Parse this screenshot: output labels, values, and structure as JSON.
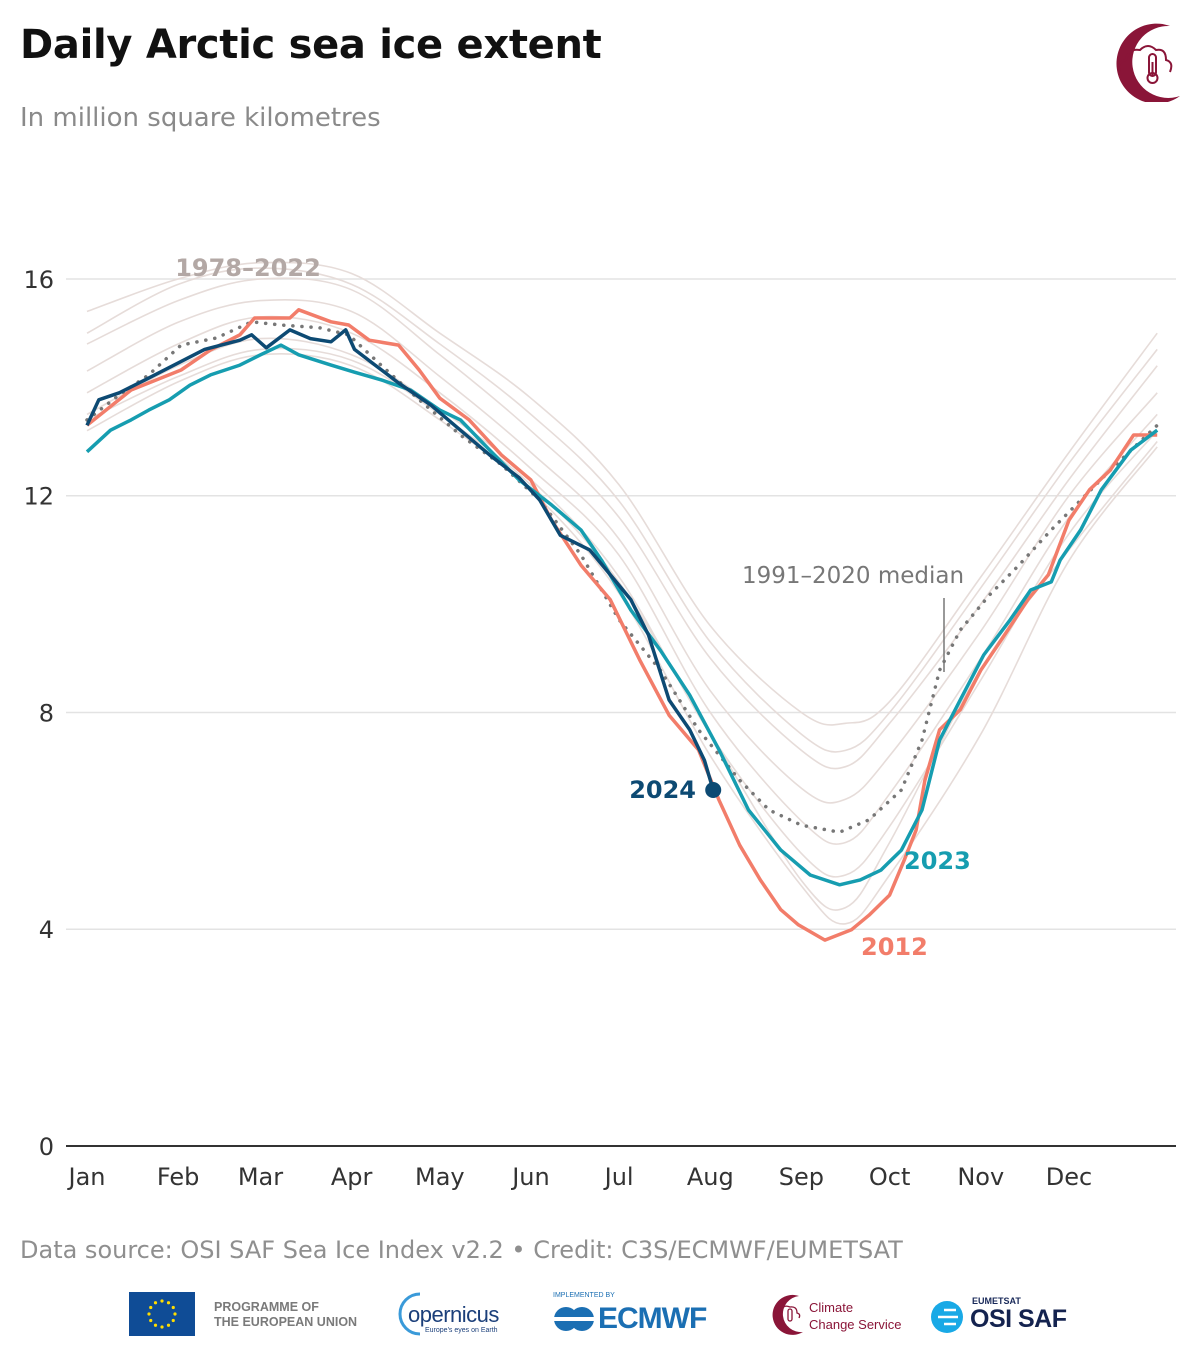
{
  "header": {
    "title": "Daily Arctic sea ice extent",
    "subtitle": "In million square kilometres"
  },
  "footer": {
    "source": "Data source: OSI SAF Sea Ice Index v2.2 • Credit: C3S/ECMWF/EUMETSAT",
    "logos": {
      "eu": "PROGRAMME OF THE EUROPEAN UNION",
      "eu_line1": "PROGRAMME OF",
      "eu_line2": "THE EUROPEAN UNION",
      "copernicus": "opernicus",
      "copernicus_tagline": "Europe's eyes on Earth",
      "ecmwf_small": "IMPLEMENTED BY",
      "ecmwf": "ECMWF",
      "ccs_line1": "Climate",
      "ccs_line2": "Change Service",
      "osi_small": "EUMETSAT",
      "osi": "OSI SAF"
    }
  },
  "colors": {
    "y2024": "#0d4a73",
    "y2023": "#169db0",
    "y2012": "#f27d6a",
    "historical": "#e6dcd9",
    "median": "#777777",
    "historical_label": "#b3a8a5",
    "brand": "#8a1538"
  },
  "chart_data": {
    "type": "line",
    "title": "Daily Arctic sea ice extent",
    "ylabel": "In million square kilometres",
    "ylim": [
      0,
      16.5
    ],
    "yticks": [
      "0",
      "4",
      "8",
      "12",
      "16"
    ],
    "ytick_values": [
      0,
      4,
      8,
      12,
      16
    ],
    "x_unit": "day of year",
    "xlim": [
      0,
      364
    ],
    "xticks": [
      "Jan",
      "Feb",
      "Mar",
      "Apr",
      "May",
      "Jun",
      "Jul",
      "Aug",
      "Sep",
      "Oct",
      "Nov",
      "Dec"
    ],
    "xtick_days": [
      0,
      31,
      59,
      90,
      120,
      151,
      181,
      212,
      243,
      273,
      304,
      334
    ],
    "grid": true,
    "historical": {
      "label": "1978–2022",
      "x": [
        0,
        31,
        59,
        90,
        120,
        151,
        181,
        212,
        243,
        258,
        273,
        304,
        334,
        364
      ],
      "lines": [
        [
          15.4,
          16.0,
          16.3,
          16.1,
          15.0,
          13.8,
          12.2,
          9.6,
          8.0,
          7.8,
          8.2,
          10.5,
          12.8,
          15.0
        ],
        [
          15.0,
          15.9,
          16.2,
          15.9,
          14.8,
          13.5,
          11.9,
          9.3,
          7.6,
          7.3,
          8.0,
          10.3,
          12.6,
          14.7
        ],
        [
          14.8,
          15.6,
          16.0,
          15.8,
          14.6,
          13.2,
          11.6,
          9.0,
          7.3,
          7.0,
          7.8,
          10.0,
          12.3,
          14.4
        ],
        [
          14.3,
          15.2,
          15.6,
          15.4,
          14.2,
          12.8,
          11.2,
          8.4,
          6.6,
          6.4,
          7.2,
          9.5,
          12.0,
          13.9
        ],
        [
          13.9,
          14.8,
          15.3,
          15.0,
          13.9,
          12.5,
          10.9,
          8.0,
          6.0,
          5.6,
          6.5,
          9.0,
          11.6,
          13.5
        ],
        [
          13.5,
          14.4,
          14.9,
          14.6,
          13.6,
          12.3,
          10.5,
          7.6,
          5.4,
          5.0,
          5.9,
          8.6,
          11.3,
          13.2
        ],
        [
          13.4,
          14.2,
          14.7,
          14.5,
          13.5,
          12.2,
          10.4,
          7.6,
          4.9,
          4.4,
          5.6,
          8.8,
          11.0,
          13.0
        ],
        [
          13.2,
          14.1,
          14.6,
          14.4,
          13.4,
          12.1,
          10.2,
          7.2,
          4.8,
          4.1,
          5.0,
          7.6,
          10.8,
          12.9
        ]
      ]
    },
    "series": [
      {
        "name": "1991–2020 median",
        "style": "dotted",
        "x": [
          0,
          11,
          21,
          32,
          44,
          56,
          66,
          79,
          89,
          100,
          113,
          127,
          141,
          154,
          168,
          181,
          195,
          208,
          222,
          232,
          243,
          256,
          266,
          277,
          284,
          290,
          297,
          307,
          317,
          328,
          338,
          348,
          364
        ],
        "y": [
          13.4,
          13.86,
          14.23,
          14.78,
          14.91,
          15.21,
          15.15,
          15.1,
          14.97,
          14.41,
          13.77,
          13.12,
          12.57,
          11.92,
          10.91,
          9.71,
          8.78,
          7.68,
          6.75,
          6.2,
          5.92,
          5.79,
          6.02,
          6.57,
          7.49,
          8.78,
          9.52,
          10.17,
          10.72,
          11.37,
          11.92,
          12.47,
          13.3
        ]
      },
      {
        "name": "2012",
        "x": [
          0,
          15,
          32,
          42,
          52,
          57,
          69,
          72,
          83,
          89,
          96,
          106,
          113,
          120,
          130,
          141,
          151,
          158,
          168,
          178,
          188,
          198,
          208,
          215,
          222,
          229,
          236,
          242,
          251,
          260,
          266,
          273,
          278,
          282,
          285,
          290,
          297,
          304,
          311,
          320,
          327,
          334,
          341,
          348,
          356,
          364
        ],
        "y": [
          13.3,
          13.95,
          14.32,
          14.69,
          14.97,
          15.28,
          15.28,
          15.43,
          15.21,
          15.15,
          14.87,
          14.78,
          14.32,
          13.8,
          13.4,
          12.75,
          12.29,
          11.55,
          10.72,
          10.08,
          8.97,
          7.95,
          7.31,
          6.38,
          5.55,
          4.91,
          4.36,
          4.08,
          3.8,
          3.99,
          4.26,
          4.63,
          5.28,
          5.83,
          6.75,
          7.68,
          8.05,
          8.78,
          9.34,
          10.08,
          10.54,
          11.55,
          12.11,
          12.47,
          13.12,
          13.12
        ]
      },
      {
        "name": "2023",
        "x": [
          0,
          8,
          15,
          21,
          28,
          35,
          42,
          52,
          59,
          66,
          72,
          83,
          91,
          100,
          110,
          120,
          127,
          137,
          147,
          158,
          168,
          175,
          185,
          195,
          205,
          215,
          225,
          236,
          246,
          256,
          263,
          270,
          277,
          284,
          290,
          297,
          305,
          314,
          321,
          328,
          331,
          338,
          345,
          355,
          364
        ],
        "y": [
          12.81,
          13.21,
          13.4,
          13.58,
          13.77,
          14.04,
          14.23,
          14.41,
          14.6,
          14.78,
          14.6,
          14.41,
          14.28,
          14.14,
          13.95,
          13.58,
          13.4,
          12.84,
          12.29,
          11.83,
          11.37,
          10.81,
          9.89,
          9.15,
          8.32,
          7.31,
          6.2,
          5.46,
          5.0,
          4.82,
          4.91,
          5.09,
          5.46,
          6.2,
          7.49,
          8.23,
          9.06,
          9.71,
          10.26,
          10.41,
          10.81,
          11.37,
          12.11,
          12.84,
          13.21
        ]
      },
      {
        "name": "2024",
        "x": [
          0,
          4,
          11,
          21,
          40,
          52,
          56,
          61,
          69,
          76,
          83,
          88,
          91,
          98,
          106,
          117,
          127,
          137,
          147,
          154,
          161,
          171,
          178,
          185,
          191,
          198,
          205,
          210,
          213
        ],
        "y": [
          13.3,
          13.77,
          13.9,
          14.17,
          14.7,
          14.87,
          14.97,
          14.73,
          15.06,
          14.9,
          14.84,
          15.06,
          14.7,
          14.41,
          14.08,
          13.67,
          13.21,
          12.75,
          12.33,
          11.92,
          11.27,
          11.0,
          10.54,
          10.08,
          9.43,
          8.23,
          7.68,
          7.12,
          6.57
        ]
      }
    ],
    "annotations": {
      "historical": "1978–2022",
      "median": "1991–2020 median",
      "y2024": "2024",
      "y2023": "2023",
      "y2012": "2012"
    }
  }
}
